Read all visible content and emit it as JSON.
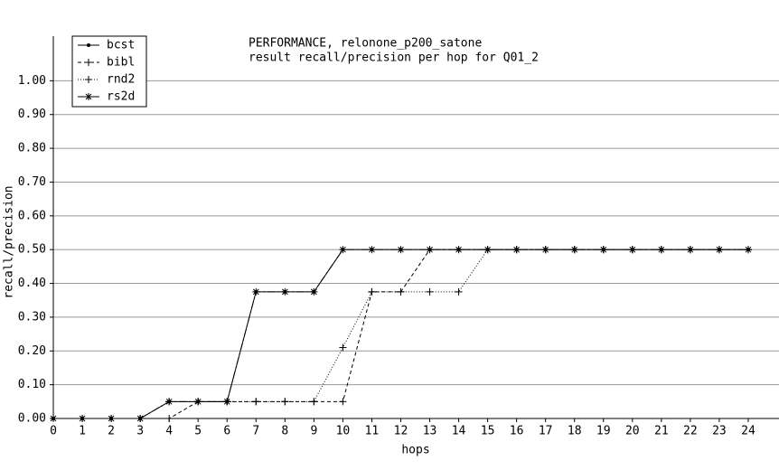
{
  "chart_data": {
    "type": "line",
    "title": "PERFORMANCE, relonone_p200_satone",
    "subtitle": "result recall/precision per hop for Q01_2",
    "x_label": "hops",
    "y_label": "recall/precision",
    "x": [
      0,
      1,
      2,
      3,
      4,
      5,
      6,
      7,
      8,
      9,
      10,
      11,
      12,
      13,
      14,
      15,
      16,
      17,
      18,
      19,
      20,
      21,
      22,
      23,
      24
    ],
    "series": [
      {
        "name": "bcst",
        "color": "#000000",
        "dash": "solid",
        "marker": "dot",
        "values": [
          0,
          0,
          0,
          0,
          0.05,
          0.05,
          0.05,
          0.375,
          0.375,
          0.375,
          0.5,
          0.5,
          0.5,
          0.5,
          0.5,
          0.5,
          0.5,
          0.5,
          0.5,
          0.5,
          0.5,
          0.5,
          0.5,
          0.5,
          0.5
        ]
      },
      {
        "name": "bibl",
        "color": "#000000",
        "dash": "dashed",
        "marker": "plus",
        "values": [
          0,
          0,
          0,
          0,
          0,
          0.05,
          0.05,
          0.05,
          0.05,
          0.05,
          0.05,
          0.375,
          0.375,
          0.5,
          0.5,
          0.5,
          0.5,
          0.5,
          0.5,
          0.5,
          0.5,
          0.5,
          0.5,
          0.5,
          0.5
        ]
      },
      {
        "name": "rnd2",
        "color": "#000000",
        "dash": "dotted",
        "marker": "plus",
        "values": [
          0,
          0,
          0,
          0,
          0.05,
          0.05,
          0.05,
          0.05,
          0.05,
          0.05,
          0.21,
          0.375,
          0.375,
          0.375,
          0.375,
          0.5,
          0.5,
          0.5,
          0.5,
          0.5,
          0.5,
          0.5,
          0.5,
          0.5,
          0.5
        ]
      },
      {
        "name": "rs2d",
        "color": "#000000",
        "dash": "dashdot",
        "marker": "star",
        "values": [
          0,
          0,
          0,
          0,
          0.05,
          0.05,
          0.05,
          0.375,
          0.375,
          0.375,
          0.5,
          0.5,
          0.5,
          0.5,
          0.5,
          0.5,
          0.5,
          0.5,
          0.5,
          0.5,
          0.5,
          0.5,
          0.5,
          0.5,
          0.5
        ]
      }
    ],
    "xlim": [
      0,
      25
    ],
    "ylim": [
      0,
      1.1
    ],
    "xticks": [
      0,
      1,
      2,
      3,
      4,
      5,
      6,
      7,
      8,
      9,
      10,
      11,
      12,
      13,
      14,
      15,
      16,
      17,
      18,
      19,
      20,
      21,
      22,
      23,
      24
    ],
    "yticks": [
      {
        "value": 0,
        "label": "0.00"
      },
      {
        "value": 0.1,
        "label": "0.10"
      },
      {
        "value": 0.2,
        "label": "0.20"
      },
      {
        "value": 0.3,
        "label": "0.30"
      },
      {
        "value": 0.4,
        "label": "0.40"
      },
      {
        "value": 0.5,
        "label": "0.50"
      },
      {
        "value": 0.6,
        "label": "0.60"
      },
      {
        "value": 0.7,
        "label": "0.70"
      },
      {
        "value": 0.8,
        "label": "0.80"
      },
      {
        "value": 0.9,
        "label": "0.90"
      },
      {
        "value": 1.0,
        "label": "1.00"
      }
    ],
    "grid": true,
    "legend": "top-left"
  }
}
